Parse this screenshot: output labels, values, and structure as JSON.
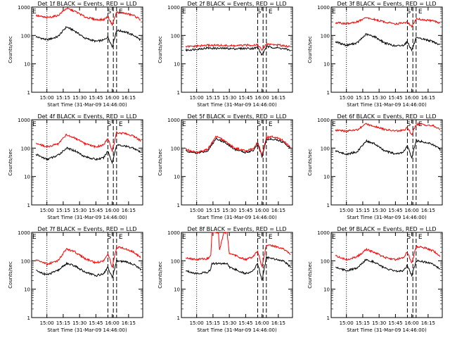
{
  "colors": {
    "black": "#000000",
    "red": "#ff0000"
  },
  "shared": {
    "ylabel": "Counts/sec",
    "xlabel": "Start Time (31-Mar-09 14:46:00)",
    "xtick_labels": [
      "15:00",
      "15:15",
      "15:30",
      "15:45",
      "16:00",
      "16:15"
    ],
    "ytick_labels": [
      "1",
      "10",
      "100",
      "1000"
    ],
    "marker_labels": {
      "e1": "E",
      "s": "S",
      "e2": "E"
    }
  },
  "chart_data": [
    {
      "type": "line",
      "title": "Det 1f BLACK = Events, RED = LLD",
      "xlabel": "Start Time (31-Mar-09 14:46:00)",
      "ylabel": "Counts/sec",
      "yscale": "log",
      "ylim": [
        1,
        1000
      ],
      "xlim": [
        "14:46",
        "16:28"
      ],
      "marker_times": [
        "14:46",
        "15:00",
        "15:56",
        "16:01",
        "16:04"
      ],
      "x": [
        "14:50",
        "15:00",
        "15:10",
        "15:18",
        "15:26",
        "15:35",
        "15:45",
        "15:52",
        "15:56",
        "16:00",
        "16:04",
        "16:10",
        "16:15",
        "16:20",
        "16:26"
      ],
      "series": [
        {
          "color": "black",
          "values": [
            90,
            70,
            90,
            200,
            140,
            80,
            62,
            68,
            90,
            40,
            150,
            140,
            120,
            100,
            70
          ]
        },
        {
          "color": "red",
          "values": [
            500,
            420,
            500,
            900,
            700,
            450,
            360,
            360,
            460,
            240,
            650,
            620,
            560,
            500,
            360
          ]
        }
      ]
    },
    {
      "type": "line",
      "title": "Det 2f BLACK = Events, RED = LLD",
      "xlabel": "Start Time (31-Mar-09 14:46:00)",
      "ylabel": "Counts/sec",
      "yscale": "log",
      "ylim": [
        1,
        1000
      ],
      "xlim": [
        "14:46",
        "16:28"
      ],
      "marker_times": [
        "14:46",
        "15:00",
        "15:56",
        "16:01",
        "16:04"
      ],
      "x": [
        "14:50",
        "15:00",
        "15:10",
        "15:18",
        "15:26",
        "15:35",
        "15:45",
        "15:52",
        "15:56",
        "16:00",
        "16:04",
        "16:10",
        "16:15",
        "16:20",
        "16:26"
      ],
      "series": [
        {
          "color": "black",
          "values": [
            30,
            33,
            36,
            35,
            35,
            34,
            35,
            35,
            38,
            20,
            40,
            38,
            36,
            34,
            30
          ]
        },
        {
          "color": "red",
          "values": [
            40,
            42,
            45,
            45,
            44,
            43,
            45,
            46,
            48,
            30,
            50,
            48,
            46,
            44,
            40
          ]
        }
      ]
    },
    {
      "type": "line",
      "title": "Det 3f BLACK = Events, RED = LLD",
      "xlabel": "Start Time (31-Mar-09 14:46:00)",
      "ylabel": "Counts/sec",
      "yscale": "log",
      "ylim": [
        1,
        1000
      ],
      "xlim": [
        "14:46",
        "16:28"
      ],
      "marker_times": [
        "14:46",
        "15:00",
        "15:56",
        "16:01",
        "16:04"
      ],
      "x": [
        "14:50",
        "15:00",
        "15:10",
        "15:18",
        "15:26",
        "15:35",
        "15:45",
        "15:52",
        "15:56",
        "16:00",
        "16:04",
        "16:10",
        "16:15",
        "16:20",
        "16:26"
      ],
      "series": [
        {
          "color": "black",
          "values": [
            60,
            45,
            55,
            110,
            90,
            55,
            42,
            45,
            60,
            30,
            80,
            75,
            68,
            60,
            45
          ]
        },
        {
          "color": "red",
          "values": [
            280,
            260,
            300,
            420,
            360,
            300,
            260,
            270,
            300,
            200,
            380,
            360,
            340,
            320,
            280
          ]
        }
      ]
    },
    {
      "type": "line",
      "title": "Det 4f BLACK = Events, RED = LLD",
      "xlabel": "Start Time (31-Mar-09 14:46:00)",
      "ylabel": "Counts/sec",
      "yscale": "log",
      "ylim": [
        1,
        1000
      ],
      "xlim": [
        "14:46",
        "16:28"
      ],
      "marker_times": [
        "14:46",
        "15:00",
        "15:56",
        "16:01",
        "16:04"
      ],
      "x": [
        "14:50",
        "15:00",
        "15:10",
        "15:18",
        "15:26",
        "15:35",
        "15:45",
        "15:52",
        "15:56",
        "16:00",
        "16:04",
        "16:10",
        "16:15",
        "16:20",
        "16:26"
      ],
      "series": [
        {
          "color": "black",
          "values": [
            60,
            40,
            55,
            100,
            80,
            50,
            40,
            45,
            80,
            30,
            130,
            120,
            110,
            100,
            70
          ]
        },
        {
          "color": "red",
          "values": [
            150,
            110,
            140,
            300,
            220,
            140,
            110,
            130,
            220,
            80,
            350,
            330,
            300,
            260,
            180
          ]
        }
      ]
    },
    {
      "type": "line",
      "title": "Det 5f BLACK = Events, RED = LLD",
      "xlabel": "Start Time (31-Mar-09 14:46:00)",
      "ylabel": "Counts/sec",
      "yscale": "log",
      "ylim": [
        1,
        1000
      ],
      "xlim": [
        "14:46",
        "16:28"
      ],
      "marker_times": [
        "14:46",
        "15:00",
        "15:56",
        "16:01",
        "16:04"
      ],
      "x": [
        "14:50",
        "15:00",
        "15:10",
        "15:18",
        "15:26",
        "15:35",
        "15:45",
        "15:52",
        "15:56",
        "16:00",
        "16:04",
        "16:10",
        "16:15",
        "16:20",
        "16:26"
      ],
      "series": [
        {
          "color": "black",
          "values": [
            80,
            65,
            80,
            220,
            160,
            90,
            70,
            85,
            140,
            50,
            200,
            210,
            190,
            160,
            100
          ]
        },
        {
          "color": "red",
          "values": [
            90,
            70,
            90,
            260,
            180,
            100,
            80,
            95,
            160,
            55,
            240,
            250,
            220,
            180,
            110
          ]
        }
      ]
    },
    {
      "type": "line",
      "title": "Det 6f BLACK = Events, RED = LLD",
      "xlabel": "Start Time (31-Mar-09 14:46:00)",
      "ylabel": "Counts/sec",
      "yscale": "log",
      "ylim": [
        1,
        1000
      ],
      "xlim": [
        "14:46",
        "16:28"
      ],
      "marker_times": [
        "14:46",
        "15:00",
        "15:56",
        "16:01",
        "16:04"
      ],
      "x": [
        "14:50",
        "15:00",
        "15:10",
        "15:18",
        "15:26",
        "15:35",
        "15:45",
        "15:52",
        "15:56",
        "16:00",
        "16:04",
        "16:10",
        "16:15",
        "16:20",
        "16:26"
      ],
      "series": [
        {
          "color": "black",
          "values": [
            80,
            60,
            75,
            180,
            140,
            80,
            62,
            70,
            120,
            45,
            180,
            170,
            150,
            130,
            90
          ]
        },
        {
          "color": "red",
          "values": [
            420,
            400,
            440,
            700,
            600,
            450,
            400,
            420,
            520,
            300,
            700,
            680,
            640,
            600,
            450
          ]
        }
      ]
    },
    {
      "type": "line",
      "title": "Det 7f BLACK = Events, RED = LLD",
      "xlabel": "Start Time (31-Mar-09 14:46:00)",
      "ylabel": "Counts/sec",
      "yscale": "log",
      "ylim": [
        1,
        1000
      ],
      "xlim": [
        "14:46",
        "16:28"
      ],
      "marker_times": [
        "14:46",
        "15:00",
        "15:56",
        "16:01",
        "16:04"
      ],
      "x": [
        "14:50",
        "15:00",
        "15:10",
        "15:18",
        "15:26",
        "15:35",
        "15:45",
        "15:52",
        "15:56",
        "16:00",
        "16:04",
        "16:10",
        "16:15",
        "16:20",
        "16:26"
      ],
      "series": [
        {
          "color": "black",
          "values": [
            45,
            32,
            45,
            80,
            65,
            40,
            30,
            35,
            60,
            25,
            100,
            95,
            85,
            75,
            50
          ]
        },
        {
          "color": "red",
          "values": [
            110,
            75,
            100,
            260,
            200,
            120,
            85,
            100,
            180,
            60,
            300,
            280,
            240,
            200,
            130
          ]
        }
      ]
    },
    {
      "type": "line",
      "title": "Det 8f BLACK = Events, RED = LLD",
      "xlabel": "Start Time (31-Mar-09 14:46:00)",
      "ylabel": "Counts/sec",
      "yscale": "log",
      "ylim": [
        1,
        1000
      ],
      "xlim": [
        "14:46",
        "16:28"
      ],
      "marker_times": [
        "14:46",
        "15:00",
        "15:56",
        "16:01",
        "16:04"
      ],
      "x": [
        "14:50",
        "15:00",
        "15:10",
        "15:13",
        "15:14",
        "15:16",
        "15:20",
        "15:21",
        "15:25",
        "15:28",
        "15:30",
        "15:38",
        "15:45",
        "15:52",
        "15:56",
        "16:00",
        "16:04",
        "16:10",
        "16:15",
        "16:20",
        "16:26"
      ],
      "series": [
        {
          "color": "black",
          "values": [
            45,
            35,
            40,
            50,
            80,
            80,
            80,
            80,
            80,
            80,
            60,
            45,
            35,
            45,
            80,
            20,
            130,
            120,
            110,
            100,
            60
          ]
        },
        {
          "color": "red",
          "values": [
            130,
            110,
            120,
            150,
            1000,
            1000,
            1000,
            250,
            1000,
            1000,
            180,
            140,
            110,
            140,
            220,
            60,
            350,
            330,
            300,
            260,
            170
          ]
        }
      ]
    },
    {
      "type": "line",
      "title": "Det 9f BLACK = Events, RED = LLD",
      "xlabel": "Start Time (31-Mar-09 14:46:00)",
      "ylabel": "Counts/sec",
      "yscale": "log",
      "ylim": [
        1,
        1000
      ],
      "xlim": [
        "14:46",
        "16:28"
      ],
      "marker_times": [
        "14:46",
        "15:00",
        "15:56",
        "16:01",
        "16:04"
      ],
      "x": [
        "14:50",
        "15:00",
        "15:10",
        "15:18",
        "15:26",
        "15:35",
        "15:45",
        "15:52",
        "15:56",
        "16:00",
        "16:04",
        "16:10",
        "16:15",
        "16:20",
        "16:26"
      ],
      "series": [
        {
          "color": "black",
          "values": [
            60,
            45,
            55,
            110,
            90,
            55,
            42,
            45,
            70,
            30,
            100,
            95,
            85,
            75,
            50
          ]
        },
        {
          "color": "red",
          "values": [
            150,
            110,
            140,
            250,
            200,
            130,
            110,
            130,
            200,
            80,
            320,
            300,
            260,
            220,
            150
          ]
        }
      ]
    }
  ]
}
